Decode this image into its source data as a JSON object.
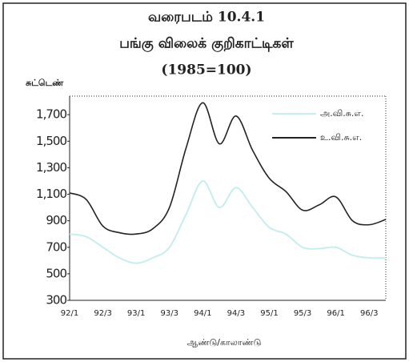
{
  "chart_data": {
    "type": "line",
    "title": [
      "வரைபடம் 10.4.1",
      "பங்கு விலைக் குறிகாட்டிகள்",
      "(1985=100)"
    ],
    "y_label": "சுட்டெண்",
    "x_label": "ஆண்டு/காலாண்டு",
    "categories": [
      "92/1",
      null,
      "92/3",
      null,
      "93/1",
      null,
      "93/3",
      null,
      "94/1",
      null,
      "94/3",
      null,
      "95/1",
      null,
      "95/3",
      null,
      "96/1",
      null,
      "96/3",
      null
    ],
    "series": [
      {
        "name": "அ.வி.சு.எ.",
        "color": "#c6eeec",
        "values": [
          800,
          780,
          700,
          620,
          580,
          620,
          700,
          950,
          1200,
          1000,
          1150,
          1000,
          850,
          800,
          700,
          690,
          700,
          640,
          620,
          620
        ]
      },
      {
        "name": "உ.வி.சு.எ.",
        "color": "#222222",
        "values": [
          1110,
          1060,
          860,
          810,
          800,
          840,
          1000,
          1450,
          1790,
          1480,
          1690,
          1430,
          1220,
          1120,
          980,
          1020,
          1080,
          900,
          870,
          910
        ]
      }
    ],
    "ylim": [
      300,
      1840
    ],
    "yticks": [
      300,
      500,
      700,
      900,
      {
        "value": 1100,
        "label": "1,100"
      },
      {
        "value": 1300,
        "label": "1,300"
      },
      {
        "value": 1500,
        "label": "1,500"
      },
      {
        "value": 1700,
        "label": "1,700"
      }
    ],
    "legend": "top-right"
  }
}
